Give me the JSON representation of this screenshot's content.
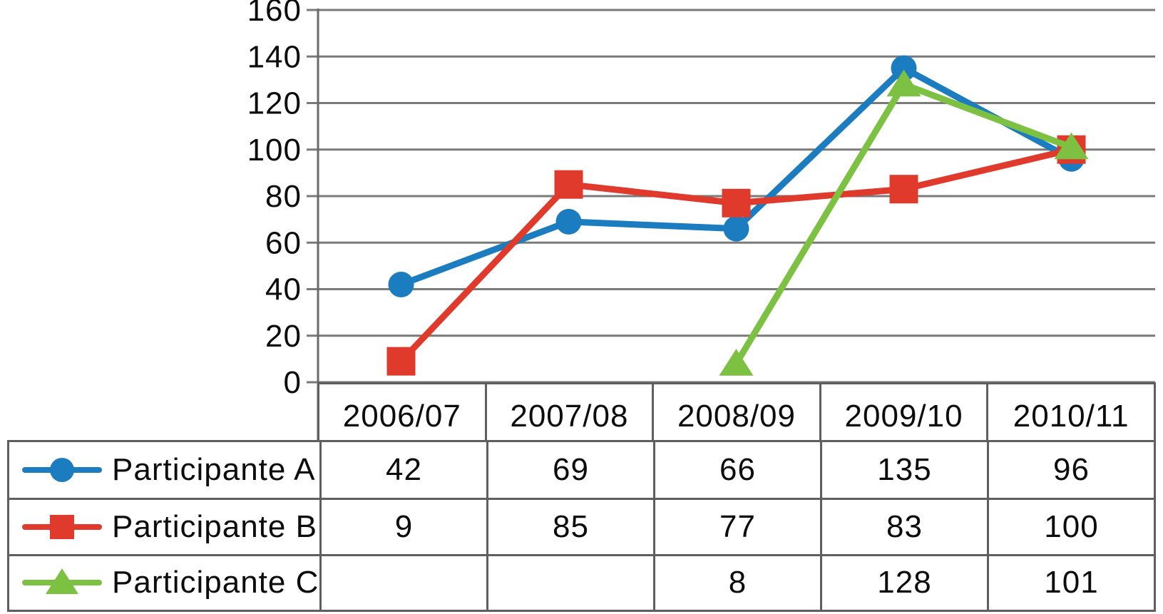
{
  "figure": {
    "background": "#ffffff",
    "grid_color": "#7a7a7a",
    "axis_color": "#6a6a6a",
    "border_color": "#5f5f5f",
    "text_color": "#0c0c0c"
  },
  "chart_data": {
    "type": "line",
    "title": "",
    "xlabel": "",
    "ylabel": "",
    "categories": [
      "2006/07",
      "2007/08",
      "2008/09",
      "2009/10",
      "2010/11"
    ],
    "series": [
      {
        "name": "Participante A",
        "marker": "circle",
        "color": "#1b7cc0",
        "values": [
          42,
          69,
          66,
          135,
          96
        ]
      },
      {
        "name": "Participante B",
        "marker": "square",
        "color": "#e03a2d",
        "values": [
          9,
          85,
          77,
          83,
          100
        ]
      },
      {
        "name": "Participante C",
        "marker": "triangle",
        "color": "#7cc142",
        "values": [
          null,
          null,
          8,
          128,
          101
        ]
      }
    ],
    "ylim": [
      0,
      160
    ],
    "ytick_step": 20,
    "yticks": [
      "0",
      "20",
      "40",
      "60",
      "80",
      "100",
      "120",
      "140",
      "160"
    ],
    "grid": true,
    "legend_position": "table-left"
  },
  "table": {
    "header_row": [
      "2006/07",
      "2007/08",
      "2008/09",
      "2009/10",
      "2010/11"
    ],
    "rows": [
      {
        "label": "Participante A",
        "marker": "circle",
        "color": "#1b7cc0",
        "cells": [
          "42",
          "69",
          "66",
          "135",
          "96"
        ]
      },
      {
        "label": "Participante B",
        "marker": "square",
        "color": "#e03a2d",
        "cells": [
          "9",
          "85",
          "77",
          "83",
          "100"
        ]
      },
      {
        "label": "Participante C",
        "marker": "triangle",
        "color": "#7cc142",
        "cells": [
          "",
          "",
          "8",
          "128",
          "101"
        ]
      }
    ]
  }
}
